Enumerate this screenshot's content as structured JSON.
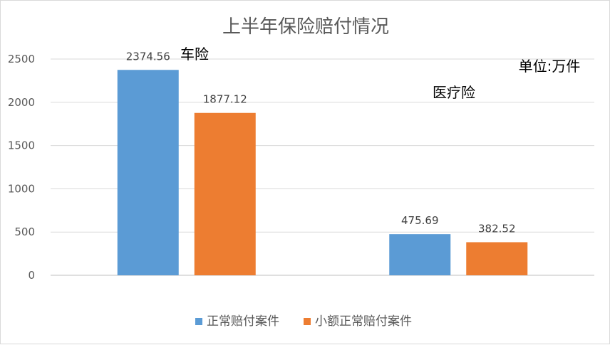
{
  "chart_data": {
    "type": "bar",
    "title": "上半年保险赔付情况",
    "unit_note": "单位:万件",
    "categories": [
      "车险",
      "医疗险"
    ],
    "series": [
      {
        "name": "正常赔付案件",
        "values": [
          2374.56,
          475.69
        ],
        "color": "#5b9bd5"
      },
      {
        "name": "小额正常赔付案件",
        "values": [
          1877.12,
          382.52
        ],
        "color": "#ed7d31"
      }
    ],
    "data_labels": [
      [
        "2374.56",
        "475.69"
      ],
      [
        "1877.12",
        "382.52"
      ]
    ],
    "y_ticks": [
      "0",
      "500",
      "1000",
      "1500",
      "2000",
      "2500"
    ],
    "ylim": [
      0,
      2500
    ],
    "xlabel": "",
    "ylabel": "",
    "grid": true,
    "legend_position": "bottom"
  }
}
